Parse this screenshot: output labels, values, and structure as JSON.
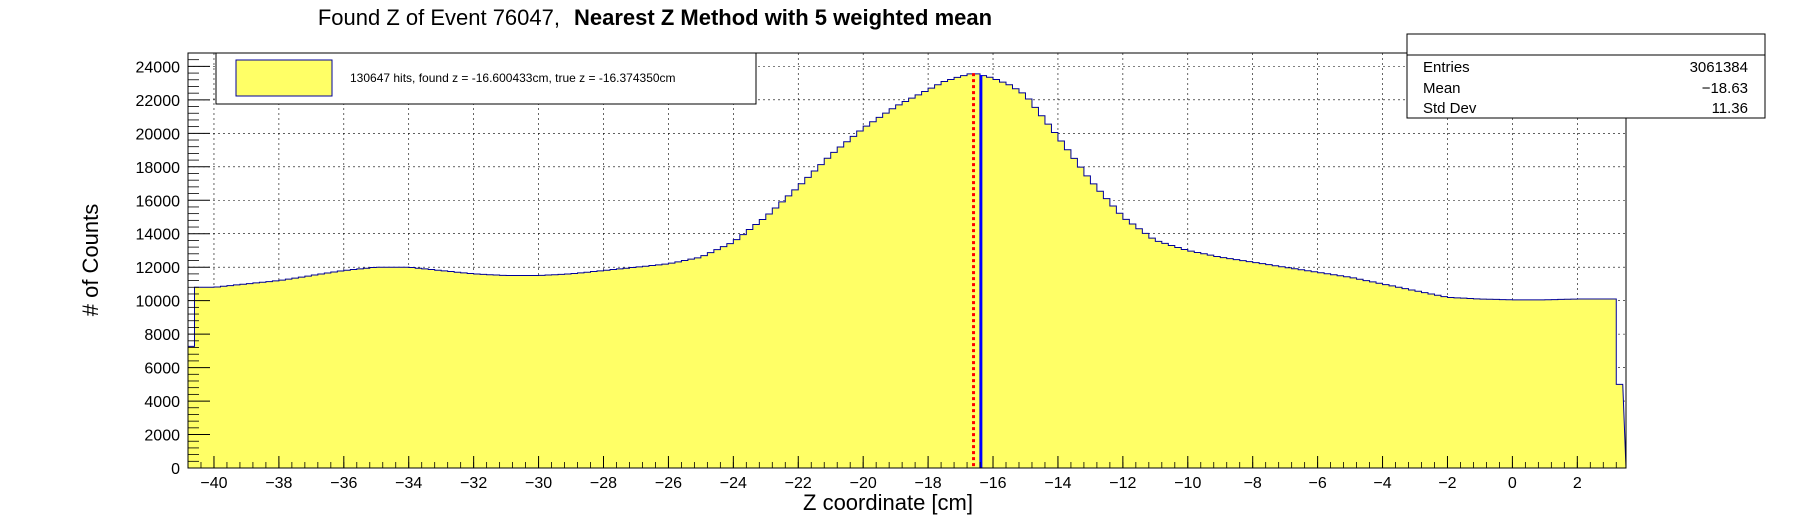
{
  "chart_data": {
    "type": "bar",
    "title_prefix": "Found Z of Event 76047,",
    "title_bold": "Nearest Z Method with 5 weighted mean",
    "xlabel": "Z coordinate [cm]",
    "ylabel": "# of Counts",
    "xlim": [
      -40.8,
      3.5
    ],
    "ylim": [
      0,
      24800
    ],
    "x_ticks": [
      -40,
      -38,
      -36,
      -34,
      -32,
      -30,
      -28,
      -26,
      -24,
      -22,
      -20,
      -18,
      -16,
      -14,
      -12,
      -10,
      -8,
      -6,
      -4,
      -2,
      0,
      2
    ],
    "y_ticks": [
      0,
      2000,
      4000,
      6000,
      8000,
      10000,
      12000,
      14000,
      16000,
      18000,
      20000,
      22000,
      24000
    ],
    "x_tick_labels": [
      "−40",
      "−38",
      "−36",
      "−34",
      "−32",
      "−30",
      "−28",
      "−26",
      "−24",
      "−22",
      "−20",
      "−18",
      "−16",
      "−14",
      "−12",
      "−10",
      "−8",
      "−6",
      "−4",
      "−2",
      "0",
      "2"
    ],
    "y_tick_labels": [
      "0",
      "2000",
      "4000",
      "6000",
      "8000",
      "10000",
      "12000",
      "14000",
      "16000",
      "18000",
      "20000",
      "22000",
      "24000"
    ],
    "grid": true,
    "histogram": {
      "bin_start": -40.8,
      "bin_width": 0.2,
      "profile_z": [
        -40.8,
        -40.5,
        -40,
        -38,
        -36,
        -35,
        -34,
        -33,
        -32,
        -31,
        -30,
        -29,
        -28,
        -27,
        -26,
        -25,
        -24,
        -23,
        -22,
        -21,
        -20,
        -19,
        -18,
        -17.5,
        -17,
        -16.6,
        -16,
        -15.5,
        -15,
        -14,
        -13,
        -12,
        -11,
        -10,
        -9,
        -8,
        -7,
        -6,
        -5,
        -4,
        -3,
        -2,
        -1,
        0,
        1,
        2,
        3.1,
        3.2,
        3.5
      ],
      "profile_counts": [
        5500,
        10800,
        10800,
        11200,
        11800,
        12000,
        12000,
        11800,
        11600,
        11500,
        11500,
        11600,
        11800,
        12000,
        12200,
        12600,
        13500,
        15000,
        16800,
        18700,
        20300,
        21600,
        22600,
        23100,
        23400,
        23600,
        23300,
        22900,
        22300,
        19800,
        17200,
        15000,
        13600,
        13000,
        12600,
        12300,
        12000,
        11700,
        11400,
        11000,
        10600,
        10200,
        10100,
        10050,
        10050,
        10100,
        10100,
        5000,
        5000
      ]
    },
    "found_z": -16.600433,
    "true_z": -16.37435,
    "legend": {
      "position": "top-left",
      "entries": [
        {
          "label": "130647 hits, found z = -16.600433cm, true z = -16.374350cm",
          "color": "#ffff66"
        }
      ]
    },
    "stats_box": {
      "position": "top-right",
      "rows": [
        {
          "label": "Entries",
          "value": "3061384"
        },
        {
          "label": "Mean",
          "value": "−18.63"
        },
        {
          "label": "Std Dev",
          "value": "11.36"
        }
      ]
    },
    "colors": {
      "fill": "#ffff66",
      "outline": "#000099",
      "found_line": "#ff0000",
      "true_line": "#0000ff"
    }
  }
}
